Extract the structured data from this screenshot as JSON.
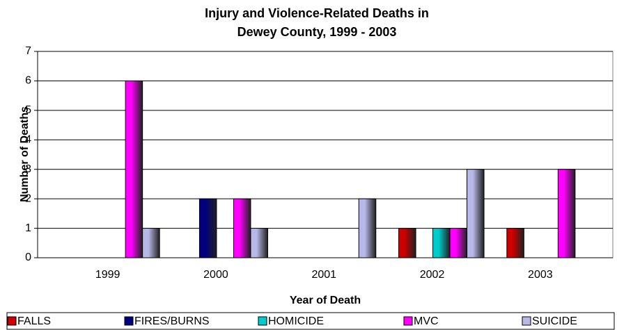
{
  "chart_data": {
    "type": "bar",
    "title": [
      "Injury and Violence-Related Deaths in",
      "Dewey County, 1999 - 2003"
    ],
    "xlabel": "Year of Death",
    "ylabel": "Number of Deaths",
    "categories": [
      "1999",
      "2000",
      "2001",
      "2002",
      "2003"
    ],
    "series": [
      {
        "name": "FALLS",
        "color": "#cc0000",
        "values": [
          0,
          0,
          0,
          1,
          1
        ]
      },
      {
        "name": "FIRES/BURNS",
        "color": "#000080",
        "values": [
          0,
          2,
          0,
          0,
          0
        ]
      },
      {
        "name": "HOMICIDE",
        "color": "#00cccc",
        "values": [
          0,
          0,
          0,
          1,
          0
        ]
      },
      {
        "name": "MVC",
        "color": "#ff00ff",
        "values": [
          6,
          2,
          0,
          1,
          3
        ]
      },
      {
        "name": "SUICIDE",
        "color": "#b8b8e8",
        "values": [
          1,
          1,
          2,
          3,
          0
        ]
      }
    ],
    "ylim": [
      0,
      7
    ],
    "yticks": [
      0,
      1,
      2,
      3,
      4,
      5,
      6,
      7
    ],
    "grid": true,
    "legend": "bottom"
  }
}
